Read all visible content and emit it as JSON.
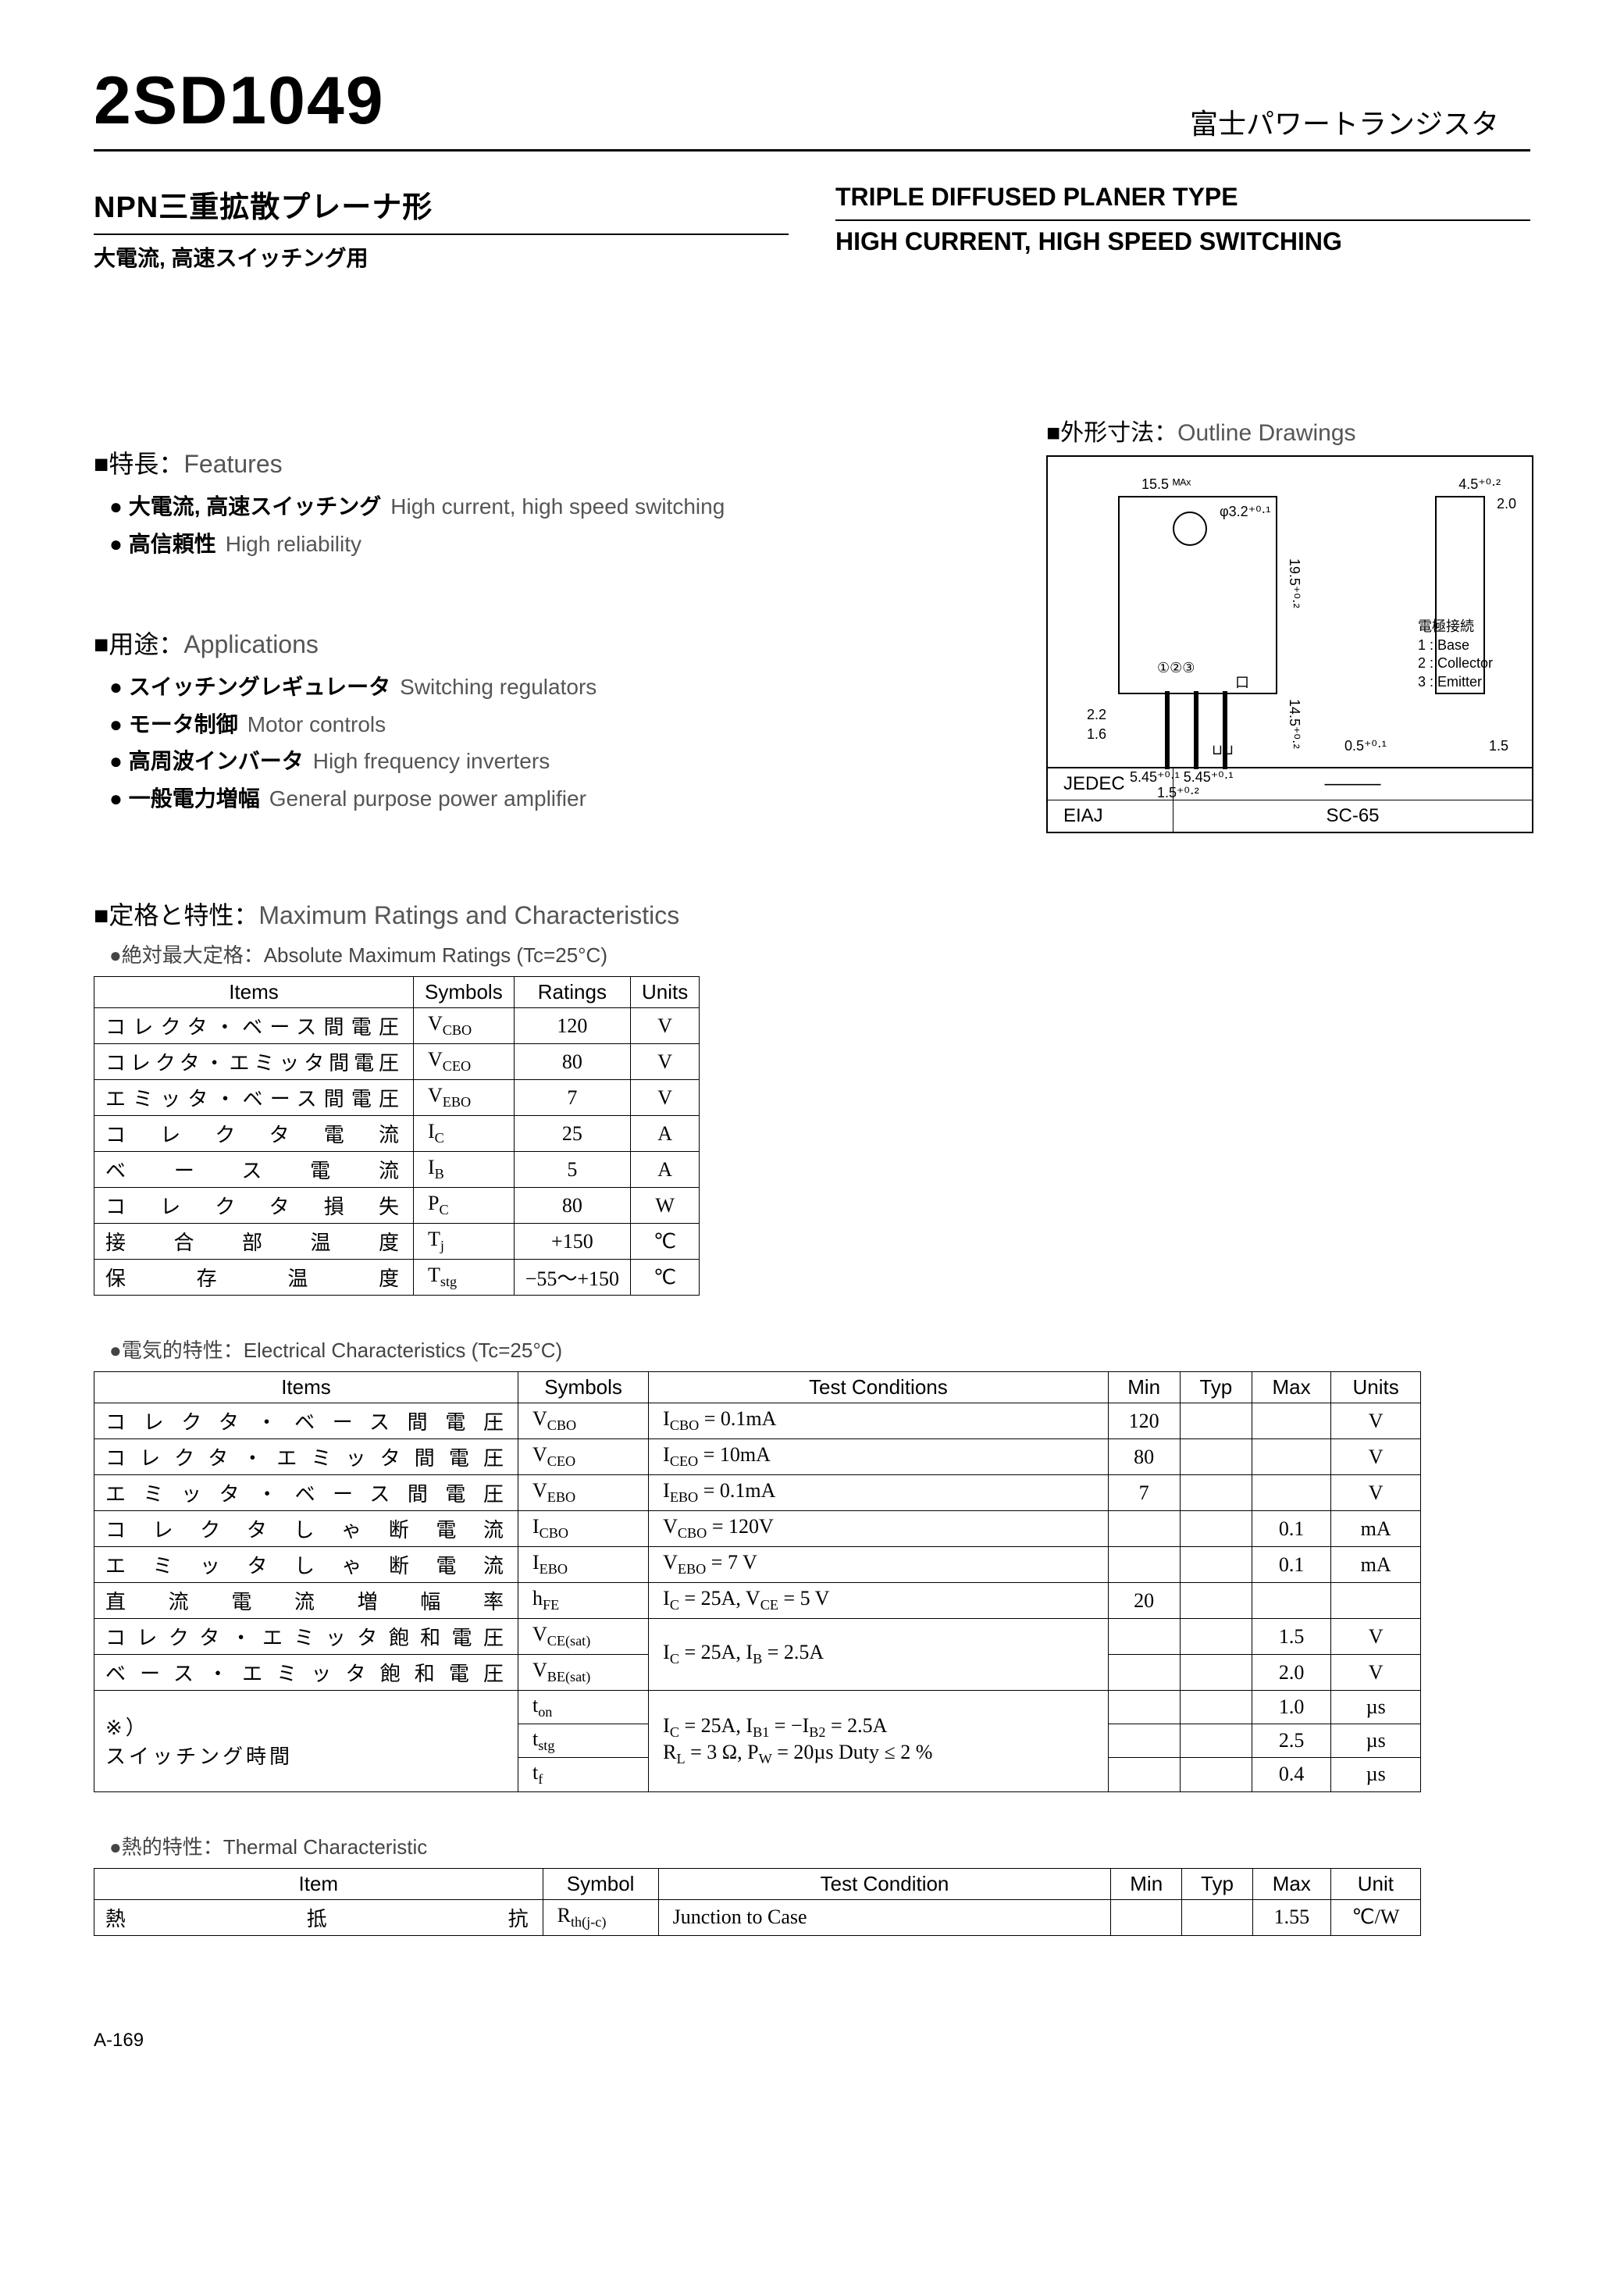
{
  "header": {
    "part_number": "2SD1049",
    "brand_jp": "富士パワートランジスタ",
    "type_jp": "NPN三重拡散プレーナ形",
    "usage_jp": "大電流, 高速スイッチング用",
    "type_en": "TRIPLE DIFFUSED PLANER TYPE",
    "usage_en": "HIGH CURRENT, HIGH SPEED SWITCHING"
  },
  "features": {
    "head_jp": "■特長：",
    "head_en": "Features",
    "items": [
      {
        "jp": "大電流, 高速スイッチング",
        "en": "High current, high speed switching"
      },
      {
        "jp": "高信頼性",
        "en": "High reliability"
      }
    ]
  },
  "applications": {
    "head_jp": "■用途：",
    "head_en": "Applications",
    "items": [
      {
        "jp": "スイッチングレギュレータ",
        "en": "Switching regulators"
      },
      {
        "jp": "モータ制御",
        "en": "Motor controls"
      },
      {
        "jp": "高周波インバータ",
        "en": "High frequency inverters"
      },
      {
        "jp": "一般電力増幅",
        "en": "General purpose power amplifier"
      }
    ]
  },
  "outline": {
    "head_jp": "■外形寸法：",
    "head_en": "Outline Drawings",
    "dims": {
      "w_body": "15.5 ᴹᴬˣ",
      "hole_d": "φ3.2⁺⁰·¹",
      "tab_h": "4.5⁺⁰·²",
      "tab_w": "2.0",
      "h_upper": "19.5⁺⁰·²",
      "h_lead": "14.5⁺⁰·²",
      "lead_sp_a": "2.2",
      "lead_sp_b": "1.6",
      "lead_t": "0.5⁺⁰·¹",
      "side_t": "1.5",
      "pitch_a": "5.45⁺⁰·¹",
      "pitch_b": "5.45⁺⁰·¹",
      "pitch_t": "1.5⁺⁰·²",
      "pin_circ": "①②③",
      "screw_sym": "口"
    },
    "pin_legend_title": "電極接続",
    "pin_legend": [
      "1 : Base",
      "2 : Collector",
      "3 : Emitter"
    ],
    "pkg_rows": [
      {
        "std": "JEDEC",
        "code": "———"
      },
      {
        "std": "EIAJ",
        "code": "SC-65"
      }
    ]
  },
  "ratings": {
    "head_jp": "■定格と特性：",
    "head_en": "Maximum Ratings and Characteristics",
    "abs_note_jp": "●絶対最大定格：",
    "abs_note_en": "Absolute Maximum Ratings (Tc=25°C)",
    "columns": [
      "Items",
      "Symbols",
      "Ratings",
      "Units"
    ],
    "rows": [
      {
        "item": "コレクタ・ベース間電圧",
        "symbol_html": "V<sub>CBO</sub>",
        "rating": "120",
        "unit": "V"
      },
      {
        "item": "コレクタ・エミッタ間電圧",
        "symbol_html": "V<sub>CEO</sub>",
        "rating": "80",
        "unit": "V"
      },
      {
        "item": "エミッタ・ベース間電圧",
        "symbol_html": "V<sub>EBO</sub>",
        "rating": "7",
        "unit": "V"
      },
      {
        "item": "コレクタ電流",
        "symbol_html": "I<sub>C</sub>",
        "rating": "25",
        "unit": "A"
      },
      {
        "item": "ベース電流",
        "symbol_html": "I<sub>B</sub>",
        "rating": "5",
        "unit": "A"
      },
      {
        "item": "コレクタ損失",
        "symbol_html": "P<sub>C</sub>",
        "rating": "80",
        "unit": "W"
      },
      {
        "item": "接合部温度",
        "symbol_html": "T<sub>j</sub>",
        "rating": "+150",
        "unit": "℃"
      },
      {
        "item": "保存温度",
        "symbol_html": "T<sub>stg</sub>",
        "rating": "−55～+150",
        "unit": "℃"
      }
    ]
  },
  "electrical": {
    "note_jp": "●電気的特性：",
    "note_en": "Electrical Characteristics (Tc=25°C)",
    "columns": [
      "Items",
      "Symbols",
      "Test Conditions",
      "Min",
      "Typ",
      "Max",
      "Units"
    ],
    "rows": [
      {
        "item": "コレクタ・ベース間電圧",
        "symbol_html": "V<sub>CBO</sub>",
        "cond_html": "I<sub>CBO</sub> = 0.1mA",
        "min": "120",
        "typ": "",
        "max": "",
        "unit": "V"
      },
      {
        "item": "コレクタ・エミッタ間電圧",
        "symbol_html": "V<sub>CEO</sub>",
        "cond_html": "I<sub>CEO</sub> = 10mA",
        "min": "80",
        "typ": "",
        "max": "",
        "unit": "V"
      },
      {
        "item": "エミッタ・ベース間電圧",
        "symbol_html": "V<sub>EBO</sub>",
        "cond_html": "I<sub>EBO</sub> = 0.1mA",
        "min": "7",
        "typ": "",
        "max": "",
        "unit": "V"
      },
      {
        "item": "コレクタしゃ断電流",
        "symbol_html": "I<sub>CBO</sub>",
        "cond_html": "V<sub>CBO</sub> = 120V",
        "min": "",
        "typ": "",
        "max": "0.1",
        "unit": "mA"
      },
      {
        "item": "エミッタしゃ断電流",
        "symbol_html": "I<sub>EBO</sub>",
        "cond_html": "V<sub>EBO</sub> = 7 V",
        "min": "",
        "typ": "",
        "max": "0.1",
        "unit": "mA"
      },
      {
        "item": "直流電流増幅率",
        "symbol_html": "h<sub>FE</sub>",
        "cond_html": "I<sub>C</sub> = 25A, V<sub>CE</sub> = 5 V",
        "min": "20",
        "typ": "",
        "max": "",
        "unit": ""
      },
      {
        "item": "コレクタ・エミッタ飽和電圧",
        "symbol_html": "V<sub>CE(sat)</sub>",
        "cond_html": "I<sub>C</sub> = 25A, I<sub>B</sub> = 2.5A",
        "cond_rowspan": 2,
        "min": "",
        "typ": "",
        "max": "1.5",
        "unit": "V"
      },
      {
        "item": "ベース・エミッタ飽和電圧",
        "symbol_html": "V<sub>BE(sat)</sub>",
        "cond_skip": true,
        "min": "",
        "typ": "",
        "max": "2.0",
        "unit": "V"
      },
      {
        "item": "※）",
        "item_rowspan": 3,
        "item2": "スイッチング時間",
        "symbol_html": "t<sub>on</sub>",
        "cond_html": "I<sub>C</sub> = 25A, I<sub>B1</sub> = −I<sub>B2</sub> = 2.5A<br>R<sub>L</sub> = 3 Ω, P<sub>W</sub> = 20µs Duty ≤ 2 %",
        "cond_rowspan": 3,
        "min": "",
        "typ": "",
        "max": "1.0",
        "unit": "µs"
      },
      {
        "item_skip": true,
        "symbol_html": "t<sub>stg</sub>",
        "cond_skip": true,
        "min": "",
        "typ": "",
        "max": "2.5",
        "unit": "µs"
      },
      {
        "item_skip": true,
        "symbol_html": "t<sub>f</sub>",
        "cond_skip": true,
        "min": "",
        "typ": "",
        "max": "0.4",
        "unit": "µs"
      }
    ]
  },
  "thermal": {
    "note_jp": "●熱的特性：",
    "note_en": "Thermal Characteristic",
    "columns": [
      "Item",
      "Symbol",
      "Test Condition",
      "Min",
      "Typ",
      "Max",
      "Unit"
    ],
    "rows": [
      {
        "item": "熱抵抗",
        "symbol_html": "R<sub>th(j-c)</sub>",
        "cond": "Junction to Case",
        "min": "",
        "typ": "",
        "max": "1.55",
        "unit": "℃/W"
      }
    ]
  },
  "footer": {
    "page": "A-169"
  },
  "style": {
    "text_color": "#000000",
    "grey": "#555555",
    "bg": "#ffffff",
    "border": "#000000"
  }
}
